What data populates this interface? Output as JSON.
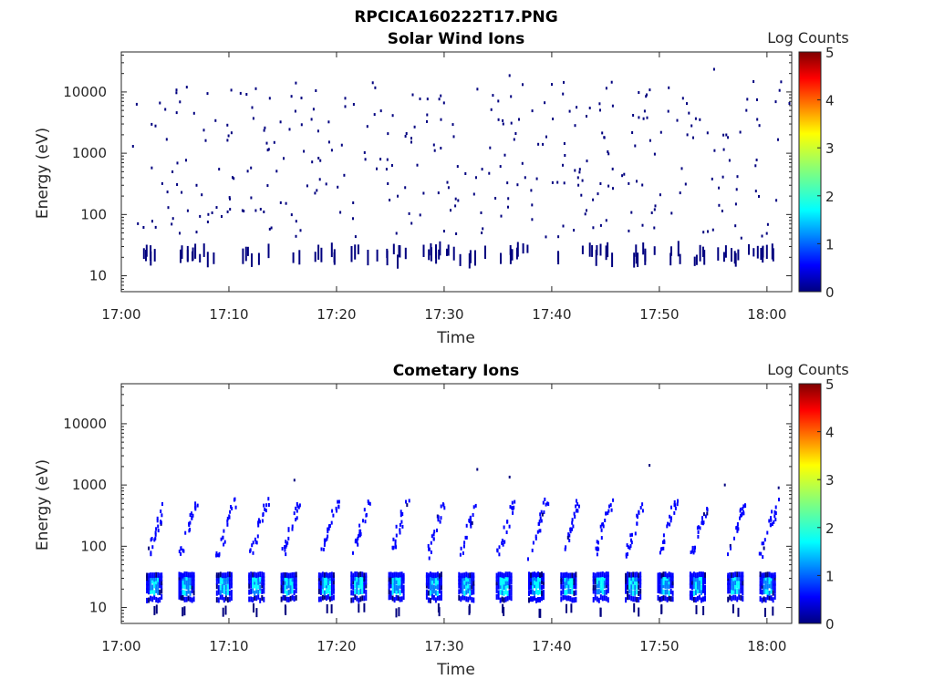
{
  "figure": {
    "filename": "RPCICA160222T17.PNG"
  },
  "colors": {
    "axis": "#262626",
    "colormap": [
      "#00007f",
      "#0000ff",
      "#007fff",
      "#00ffff",
      "#7fff7f",
      "#ffff00",
      "#ff7f00",
      "#ff0000",
      "#7f0000"
    ]
  },
  "chart_data": [
    {
      "type": "heatmap",
      "title": "Solar Wind Ions",
      "xlabel": "Time",
      "ylabel": "Energy (eV)",
      "x_ticks": [
        "17:00",
        "17:10",
        "17:20",
        "17:30",
        "17:40",
        "17:50",
        "18:00"
      ],
      "y_scale": "log",
      "y_ticks": [
        "10",
        "100",
        "1000",
        "10000"
      ],
      "ylim": [
        5.5,
        45000
      ],
      "colorbar": {
        "label": "Log Counts",
        "range": [
          0,
          5
        ],
        "ticks": [
          "0",
          "1",
          "2",
          "3",
          "4",
          "5"
        ]
      },
      "description_series": [
        {
          "t": [
            "17:03",
            "17:06",
            "17:12",
            "17:19",
            "17:25",
            "17:28",
            "17:33",
            "17:36",
            "17:44",
            "17:48",
            "17:54",
            "17:57",
            "18:00"
          ],
          "energy_eV": 20,
          "log_counts": 0.3
        }
      ],
      "sparse_points": [
        {
          "t": "17:01",
          "e": 1300
        },
        {
          "t": "17:04",
          "e": 5200
        },
        {
          "t": "17:06",
          "e": 12000
        },
        {
          "t": "17:11",
          "e": 9500
        },
        {
          "t": "17:24",
          "e": 800
        },
        {
          "t": "17:27",
          "e": 9000
        },
        {
          "t": "17:36",
          "e": 18500
        },
        {
          "t": "17:45",
          "e": 11500
        },
        {
          "t": "17:48",
          "e": 9800
        },
        {
          "t": "17:55",
          "e": 23500
        },
        {
          "t": "17:58",
          "e": 5000
        },
        {
          "t": "18:02",
          "e": 6500
        },
        {
          "t": "17:08",
          "e": 100
        },
        {
          "t": "17:31",
          "e": 180
        },
        {
          "t": "17:50",
          "e": 210
        }
      ]
    },
    {
      "type": "heatmap",
      "title": "Cometary Ions",
      "xlabel": "Time",
      "ylabel": "Energy (eV)",
      "x_ticks": [
        "17:00",
        "17:10",
        "17:20",
        "17:30",
        "17:40",
        "17:50",
        "18:00"
      ],
      "y_scale": "log",
      "y_ticks": [
        "10",
        "100",
        "1000",
        "10000"
      ],
      "ylim": [
        5.5,
        45000
      ],
      "colorbar": {
        "label": "Log Counts",
        "range": [
          0,
          5
        ],
        "ticks": [
          "0",
          "1",
          "2",
          "3",
          "4",
          "5"
        ]
      },
      "bursts_min": [
        3,
        6,
        9.5,
        12.5,
        15.5,
        19,
        22,
        25.5,
        29,
        32,
        35.5,
        38.5,
        41.5,
        44.5,
        47.5,
        50.5,
        53.5,
        57,
        60
      ],
      "burst_band_eV": [
        12,
        35
      ],
      "burst_peak_log_counts": 2.0,
      "sparse_points": [
        {
          "t": "17:16",
          "e": 1200
        },
        {
          "t": "17:33",
          "e": 1800
        },
        {
          "t": "17:36",
          "e": 1350
        },
        {
          "t": "17:49",
          "e": 2100
        },
        {
          "t": "17:56",
          "e": 1000
        },
        {
          "t": "18:01",
          "e": 900
        }
      ]
    }
  ]
}
